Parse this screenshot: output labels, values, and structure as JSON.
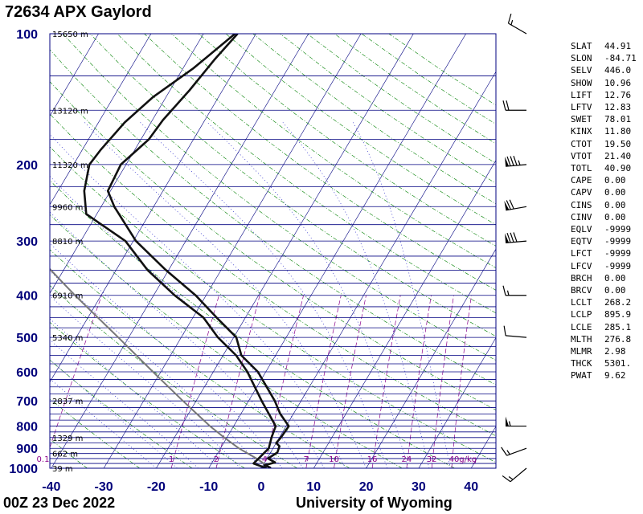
{
  "header": {
    "title": "72634 APX Gaylord"
  },
  "footer": {
    "timestamp": "00Z 23 Dec 2022",
    "credit": "University of Wyoming"
  },
  "colors": {
    "axis_text": "#00007a",
    "isobar": "#000080",
    "isotherm": "#000080",
    "dry_adiabat": "#008000",
    "moist_adiabat": "#0000c0",
    "mixing_ratio": "#8b008b",
    "profile": "#111111",
    "parcel": "#777777"
  },
  "chart_data": {
    "type": "skew-t",
    "pressure_levels": [
      100,
      200,
      300,
      400,
      500,
      600,
      700,
      800,
      900,
      1000
    ],
    "pressure_labels": [
      "100",
      "200",
      "300",
      "400",
      "500",
      "600",
      "700",
      "800",
      "900",
      "1000"
    ],
    "height_labels": [
      {
        "p": 100,
        "text": "15650 m"
      },
      {
        "p": 150,
        "text": "13120 m"
      },
      {
        "p": 200,
        "text": "11320 m"
      },
      {
        "p": 250,
        "text": "9960 m"
      },
      {
        "p": 300,
        "text": "8810 m"
      },
      {
        "p": 400,
        "text": "6910 m"
      },
      {
        "p": 500,
        "text": "5340 m"
      },
      {
        "p": 700,
        "text": "2837 m"
      },
      {
        "p": 850,
        "text": "1329 m"
      },
      {
        "p": 925,
        "text": "662 m"
      },
      {
        "p": 1000,
        "text": "39 m"
      }
    ],
    "temperature_ticks": [
      "-40",
      "-30",
      "-20",
      "-10",
      "0",
      "10",
      "20",
      "30",
      "40"
    ],
    "mixing_ratio_labels": [
      "0.1",
      "1",
      "2",
      "4",
      "7",
      "10",
      "16",
      "24",
      "32",
      "40g/kg"
    ],
    "xlim": [
      -40,
      45
    ],
    "ylim": [
      1000,
      100
    ],
    "temperature_profile": [
      {
        "p": 100,
        "t": -53.5
      },
      {
        "p": 115,
        "t": -55.0
      },
      {
        "p": 135,
        "t": -56.3
      },
      {
        "p": 158,
        "t": -58.0
      },
      {
        "p": 175,
        "t": -58.5
      },
      {
        "p": 200,
        "t": -61.0
      },
      {
        "p": 230,
        "t": -60.5
      },
      {
        "p": 250,
        "t": -57.5
      },
      {
        "p": 300,
        "t": -49.5
      },
      {
        "p": 350,
        "t": -40.5
      },
      {
        "p": 400,
        "t": -32.0
      },
      {
        "p": 450,
        "t": -25.5
      },
      {
        "p": 500,
        "t": -19.5
      },
      {
        "p": 550,
        "t": -16.5
      },
      {
        "p": 600,
        "t": -11.5
      },
      {
        "p": 700,
        "t": -5.0
      },
      {
        "p": 750,
        "t": -2.5
      },
      {
        "p": 800,
        "t": 0.5
      },
      {
        "p": 850,
        "t": 0.3
      },
      {
        "p": 875,
        "t": 0.0
      },
      {
        "p": 890,
        "t": 1.0
      },
      {
        "p": 920,
        "t": 1.3
      },
      {
        "p": 950,
        "t": 0.2
      },
      {
        "p": 970,
        "t": 2.0
      },
      {
        "p": 985,
        "t": 0.3
      },
      {
        "p": 995,
        "t": 1.5
      },
      {
        "p": 1000,
        "t": 1.8
      }
    ],
    "dewpoint_profile": [
      {
        "p": 100,
        "t": -54.0
      },
      {
        "p": 120,
        "t": -58.0
      },
      {
        "p": 140,
        "t": -62.5
      },
      {
        "p": 160,
        "t": -65.0
      },
      {
        "p": 185,
        "t": -66.5
      },
      {
        "p": 200,
        "t": -67.0
      },
      {
        "p": 230,
        "t": -65.0
      },
      {
        "p": 260,
        "t": -62.0
      },
      {
        "p": 300,
        "t": -51.5
      },
      {
        "p": 350,
        "t": -44.0
      },
      {
        "p": 400,
        "t": -36.0
      },
      {
        "p": 450,
        "t": -28.0
      },
      {
        "p": 500,
        "t": -23.0
      },
      {
        "p": 550,
        "t": -17.5
      },
      {
        "p": 600,
        "t": -13.5
      },
      {
        "p": 700,
        "t": -7.5
      },
      {
        "p": 800,
        "t": -2.0
      },
      {
        "p": 850,
        "t": -1.5
      },
      {
        "p": 900,
        "t": -0.8
      },
      {
        "p": 950,
        "t": -1.6
      },
      {
        "p": 975,
        "t": -2.0
      },
      {
        "p": 990,
        "t": -0.2
      },
      {
        "p": 1000,
        "t": 1.0
      }
    ],
    "parcel_path": [
      {
        "p": 1000,
        "t": 1.8
      },
      {
        "p": 950,
        "t": -2.0
      },
      {
        "p": 900,
        "t": -6.5
      },
      {
        "p": 850,
        "t": -10.5
      },
      {
        "p": 800,
        "t": -14.5
      },
      {
        "p": 700,
        "t": -22.5
      },
      {
        "p": 600,
        "t": -31.5
      },
      {
        "p": 500,
        "t": -42.0
      },
      {
        "p": 400,
        "t": -55.0
      },
      {
        "p": 300,
        "t": -71.0
      },
      {
        "p": 200,
        "t": -91.0
      },
      {
        "p": 150,
        "t": -104.0
      },
      {
        "p": 125,
        "t": -111.0
      }
    ],
    "wind_barbs": [
      {
        "p": 100,
        "dir": 300,
        "speed_kt": 15
      },
      {
        "p": 150,
        "dir": 270,
        "speed_kt": 20
      },
      {
        "p": 200,
        "dir": 265,
        "speed_kt": 85
      },
      {
        "p": 250,
        "dir": 260,
        "speed_kt": 70
      },
      {
        "p": 300,
        "dir": 265,
        "speed_kt": 80
      },
      {
        "p": 400,
        "dir": 270,
        "speed_kt": 15
      },
      {
        "p": 500,
        "dir": 275,
        "speed_kt": 10
      },
      {
        "p": 800,
        "dir": 270,
        "speed_kt": 55
      },
      {
        "p": 900,
        "dir": 250,
        "speed_kt": 15
      },
      {
        "p": 1000,
        "dir": 230,
        "speed_kt": 15
      }
    ]
  },
  "indices": [
    {
      "key": "SLAT",
      "value": "44.91"
    },
    {
      "key": "SLON",
      "value": "-84.71"
    },
    {
      "key": "SELV",
      "value": "446.0"
    },
    {
      "key": "SHOW",
      "value": "10.96"
    },
    {
      "key": "LIFT",
      "value": "12.76"
    },
    {
      "key": "LFTV",
      "value": "12.83"
    },
    {
      "key": "SWET",
      "value": "78.01"
    },
    {
      "key": "KINX",
      "value": "11.80"
    },
    {
      "key": "CTOT",
      "value": "19.50"
    },
    {
      "key": "VTOT",
      "value": "21.40"
    },
    {
      "key": "TOTL",
      "value": "40.90"
    },
    {
      "key": "CAPE",
      "value": "0.00"
    },
    {
      "key": "CAPV",
      "value": "0.00"
    },
    {
      "key": "CINS",
      "value": "0.00"
    },
    {
      "key": "CINV",
      "value": "0.00"
    },
    {
      "key": "EQLV",
      "value": "-9999"
    },
    {
      "key": "EQTV",
      "value": "-9999"
    },
    {
      "key": "LFCT",
      "value": "-9999"
    },
    {
      "key": "LFCV",
      "value": "-9999"
    },
    {
      "key": "BRCH",
      "value": "0.00"
    },
    {
      "key": "BRCV",
      "value": "0.00"
    },
    {
      "key": "LCLT",
      "value": "268.2"
    },
    {
      "key": "LCLP",
      "value": "895.9"
    },
    {
      "key": "LCLE",
      "value": "285.1"
    },
    {
      "key": "MLTH",
      "value": "276.8"
    },
    {
      "key": "MLMR",
      "value": "2.98"
    },
    {
      "key": "THCK",
      "value": "5301."
    },
    {
      "key": "PWAT",
      "value": "9.62"
    }
  ]
}
